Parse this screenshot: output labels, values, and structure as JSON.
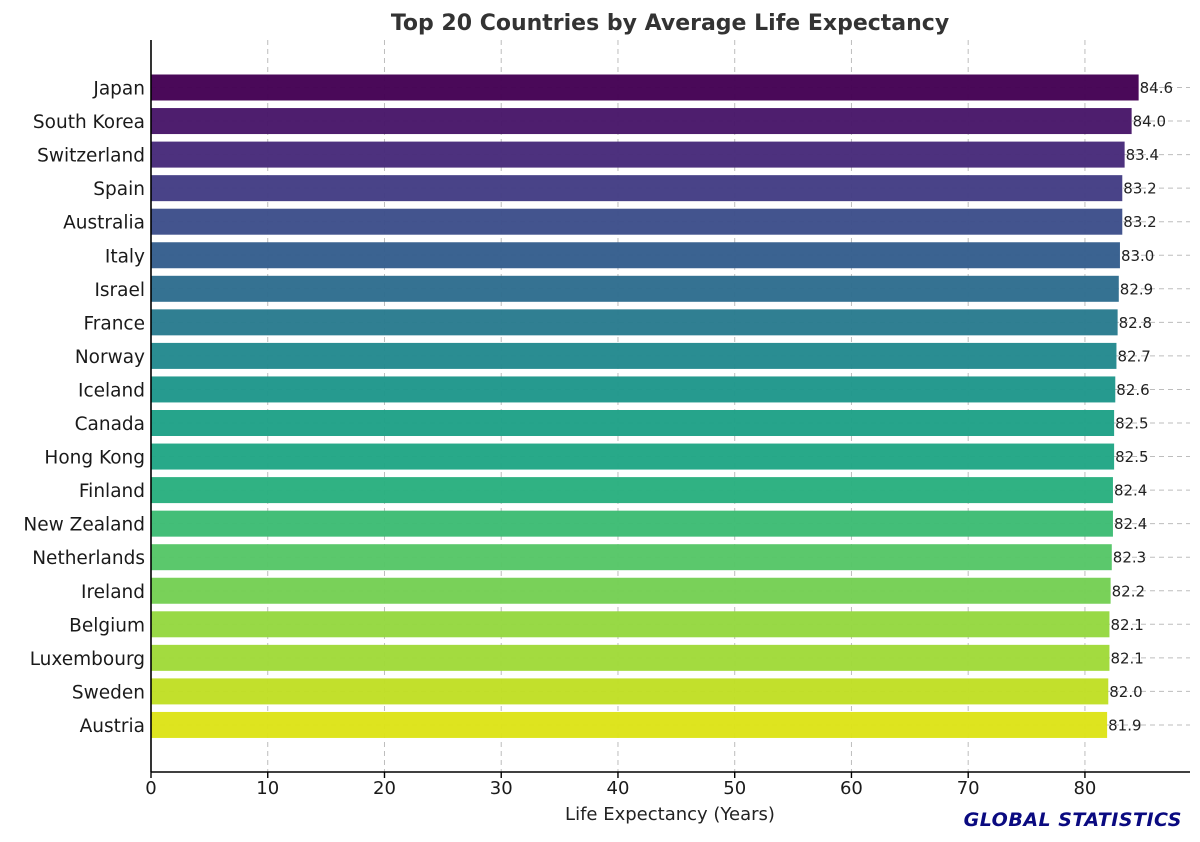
{
  "chart_data": {
    "type": "bar",
    "orientation": "horizontal",
    "title": "Top 20 Countries by Average Life Expectancy",
    "xlabel": "Life Expectancy (Years)",
    "ylabel": "",
    "categories": [
      "Japan",
      "South Korea",
      "Switzerland",
      "Spain",
      "Australia",
      "Italy",
      "Israel",
      "France",
      "Norway",
      "Iceland",
      "Canada",
      "Hong Kong",
      "Finland",
      "New Zealand",
      "Netherlands",
      "Ireland",
      "Belgium",
      "Luxembourg",
      "Sweden",
      "Austria"
    ],
    "values": [
      84.6,
      84.0,
      83.4,
      83.2,
      83.2,
      83.0,
      82.9,
      82.8,
      82.7,
      82.6,
      82.5,
      82.5,
      82.4,
      82.4,
      82.3,
      82.2,
      82.1,
      82.1,
      82.0,
      81.9
    ],
    "value_labels": [
      "84.6",
      "84.0",
      "83.4",
      "83.2",
      "83.2",
      "83.0",
      "82.9",
      "82.8",
      "82.7",
      "82.6",
      "82.5",
      "82.5",
      "82.4",
      "82.4",
      "82.3",
      "82.2",
      "82.1",
      "82.1",
      "82.0",
      "81.9"
    ],
    "xlim": [
      0,
      89
    ],
    "xticks": [
      0,
      10,
      20,
      30,
      40,
      50,
      60,
      70,
      80
    ],
    "grid": true,
    "legend": "none",
    "colormap": "viridis",
    "colors": [
      "#440154",
      "#481769",
      "#472a7a",
      "#433d84",
      "#3d4e8a",
      "#355e8d",
      "#2e6d8e",
      "#297b8e",
      "#23898e",
      "#1f978b",
      "#1fa187",
      "#21a685",
      "#29af7f",
      "#3dbc74",
      "#56c667",
      "#75d054",
      "#95d840",
      "#a0da39",
      "#c0df25",
      "#dde318"
    ]
  },
  "watermark": {
    "text": "GLOBAL STATISTICS",
    "color": "#0a0a80"
  }
}
